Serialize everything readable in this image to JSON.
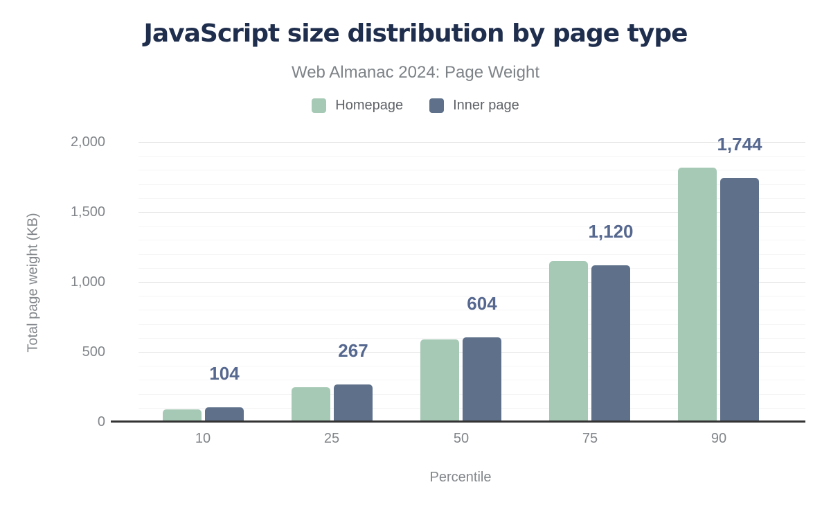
{
  "figure": {
    "title": "JavaScript size distribution by page type",
    "subtitle": "Web Almanac 2024: Page Weight"
  },
  "chart_data": {
    "type": "bar",
    "title": "JavaScript size distribution by page type",
    "subtitle": "Web Almanac 2024: Page Weight",
    "xlabel": "Percentile",
    "ylabel": "Total page weight (KB)",
    "categories": [
      "10",
      "25",
      "50",
      "75",
      "90"
    ],
    "series": [
      {
        "name": "Homepage",
        "color": "#a6c9b5",
        "values": [
          87,
          250,
          590,
          1150,
          1815
        ]
      },
      {
        "name": "Inner page",
        "color": "#5e708a",
        "values": [
          104,
          267,
          604,
          1120,
          1744
        ],
        "data_labels": [
          "104",
          "267",
          "604",
          "1,120",
          "1,744"
        ]
      }
    ],
    "ylim": [
      0,
      2000
    ],
    "yticks": [
      {
        "v": 0,
        "label": "0"
      },
      {
        "v": 500,
        "label": "500"
      },
      {
        "v": 1000,
        "label": "1,000"
      },
      {
        "v": 1500,
        "label": "1,500"
      },
      {
        "v": 2000,
        "label": "2,000"
      }
    ],
    "minor_grid_step": 100,
    "major_grid_step": 500,
    "grid": true,
    "legend_position": "top",
    "labeled_series": "Inner page"
  },
  "colors": {
    "background": "#ffffff",
    "title": "#1f2e4d",
    "subtitle": "#7d8287",
    "axis_text": "#818589",
    "legend_text": "#5f6368",
    "homepage": "#a6c9b5",
    "inner_page": "#5e708a",
    "data_label": "#56688f",
    "gridline_major": "#e4e4e4",
    "gridline_minor": "#f5f5f5",
    "axis_line": "#333333"
  }
}
